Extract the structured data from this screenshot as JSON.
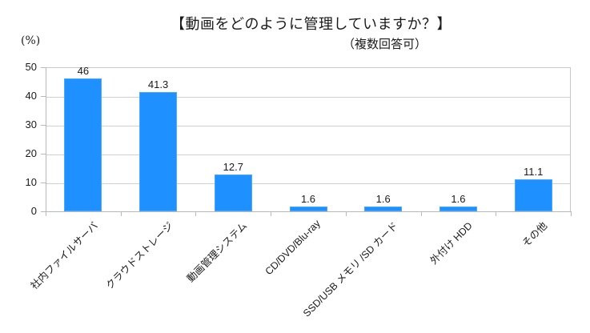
{
  "chart_data": {
    "type": "bar",
    "title": "【動画をどのように管理していますか？】",
    "subtitle": "（複数回答可）",
    "ylabel": "(%)",
    "xlabel": "",
    "ylim": [
      0,
      50
    ],
    "yticks": [
      "0",
      "10",
      "20",
      "30",
      "40",
      "50"
    ],
    "grid": true,
    "legend": null,
    "bar_color": "#1e90ff",
    "categories": [
      "社内ファイルサーバ",
      "クラウドストレージ",
      "動画管理システム",
      "CD/DVD/Blu-ray",
      "SSD/USB メモリ /SD カード",
      "外付け HDD",
      "その他"
    ],
    "values": [
      46,
      41.3,
      12.7,
      1.6,
      1.6,
      1.6,
      11.1
    ],
    "value_labels": [
      "46",
      "41.3",
      "12.7",
      "1.6",
      "1.6",
      "1.6",
      "11.1"
    ]
  }
}
